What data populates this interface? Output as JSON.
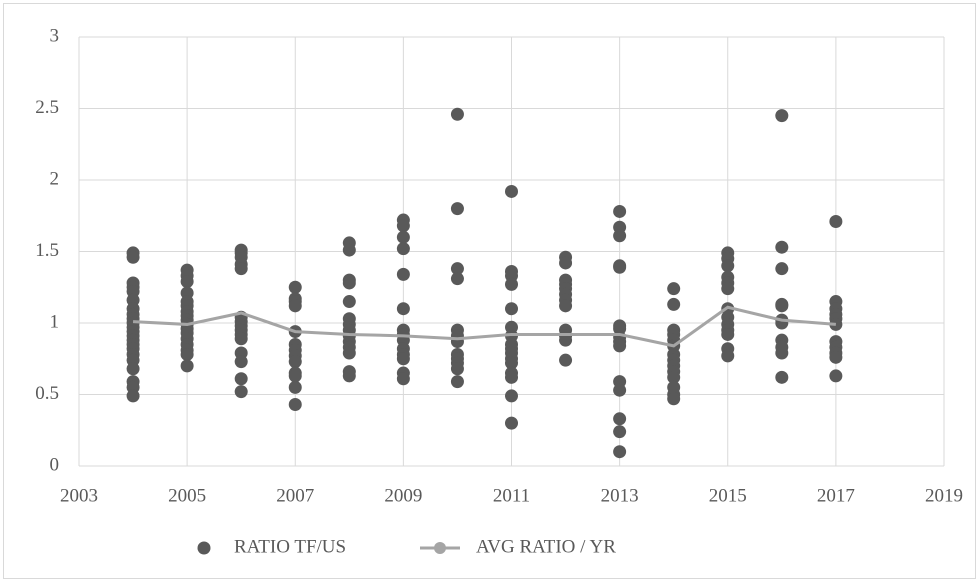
{
  "chart_data": {
    "type": "scatter",
    "xlim": [
      2003,
      2019
    ],
    "xticks": [
      2003,
      2005,
      2007,
      2009,
      2011,
      2013,
      2015,
      2017,
      2019
    ],
    "ylim": [
      0,
      3
    ],
    "yticks": [
      0,
      0.5,
      1,
      1.5,
      2,
      2.5,
      3
    ],
    "grid": true,
    "legend": "bottom",
    "series": [
      {
        "name": "RATIO TF/US",
        "color": "#595959",
        "mode": "markers",
        "x": [
          2004,
          2004,
          2004,
          2004,
          2004,
          2004,
          2004,
          2004,
          2004,
          2004,
          2004,
          2004,
          2004,
          2004,
          2004,
          2004,
          2004,
          2004,
          2004,
          2004,
          2004,
          2004,
          2005,
          2005,
          2005,
          2005,
          2005,
          2005,
          2005,
          2005,
          2005,
          2005,
          2005,
          2005,
          2005,
          2005,
          2005,
          2005,
          2005,
          2006,
          2006,
          2006,
          2006,
          2006,
          2006,
          2006,
          2006,
          2006,
          2006,
          2006,
          2006,
          2006,
          2006,
          2006,
          2007,
          2007,
          2007,
          2007,
          2007,
          2007,
          2007,
          2007,
          2007,
          2007,
          2007,
          2007,
          2007,
          2008,
          2008,
          2008,
          2008,
          2008,
          2008,
          2008,
          2008,
          2008,
          2008,
          2008,
          2008,
          2008,
          2008,
          2009,
          2009,
          2009,
          2009,
          2009,
          2009,
          2009,
          2009,
          2009,
          2009,
          2009,
          2009,
          2009,
          2009,
          2010,
          2010,
          2010,
          2010,
          2010,
          2010,
          2010,
          2010,
          2010,
          2010,
          2010,
          2010,
          2011,
          2011,
          2011,
          2011,
          2011,
          2011,
          2011,
          2011,
          2011,
          2011,
          2011,
          2011,
          2011,
          2011,
          2011,
          2011,
          2012,
          2012,
          2012,
          2012,
          2012,
          2012,
          2012,
          2012,
          2012,
          2012,
          2012,
          2012,
          2013,
          2013,
          2013,
          2013,
          2013,
          2013,
          2013,
          2013,
          2013,
          2013,
          2013,
          2013,
          2013,
          2013,
          2013,
          2014,
          2014,
          2014,
          2014,
          2014,
          2014,
          2014,
          2014,
          2014,
          2014,
          2014,
          2014,
          2014,
          2014,
          2015,
          2015,
          2015,
          2015,
          2015,
          2015,
          2015,
          2015,
          2015,
          2015,
          2015,
          2015,
          2015,
          2016,
          2016,
          2016,
          2016,
          2016,
          2016,
          2016,
          2016,
          2016,
          2016,
          2016,
          2017,
          2017,
          2017,
          2017,
          2017,
          2017,
          2017,
          2017,
          2017,
          2017,
          2017
        ],
        "values": [
          1.49,
          1.46,
          1.28,
          1.25,
          1.22,
          1.16,
          1.1,
          1.06,
          1.03,
          1.0,
          0.97,
          0.94,
          0.91,
          0.88,
          0.85,
          0.82,
          0.78,
          0.74,
          0.68,
          0.59,
          0.55,
          0.49,
          1.37,
          1.33,
          1.29,
          1.21,
          1.15,
          1.12,
          1.08,
          1.05,
          1.02,
          0.99,
          0.96,
          0.93,
          0.89,
          0.85,
          0.81,
          0.78,
          0.7,
          1.51,
          1.49,
          1.46,
          1.41,
          1.38,
          1.04,
          1.01,
          0.98,
          0.95,
          0.92,
          0.89,
          0.79,
          0.73,
          0.61,
          0.52,
          1.25,
          1.17,
          1.15,
          1.12,
          0.94,
          0.85,
          0.81,
          0.77,
          0.73,
          0.65,
          0.63,
          0.55,
          0.43,
          1.56,
          1.51,
          1.3,
          1.28,
          1.15,
          1.03,
          0.99,
          0.95,
          0.91,
          0.87,
          0.83,
          0.79,
          0.66,
          0.63,
          1.72,
          1.68,
          1.6,
          1.52,
          1.34,
          1.1,
          0.95,
          0.92,
          0.88,
          0.82,
          0.78,
          0.75,
          0.65,
          0.61,
          2.46,
          1.8,
          1.38,
          1.31,
          0.95,
          0.91,
          0.87,
          0.78,
          0.75,
          0.72,
          0.68,
          0.59,
          1.92,
          1.36,
          1.33,
          1.27,
          1.1,
          0.97,
          0.91,
          0.85,
          0.82,
          0.79,
          0.75,
          0.72,
          0.65,
          0.62,
          0.49,
          0.3,
          1.46,
          1.42,
          1.3,
          1.27,
          1.24,
          1.2,
          1.16,
          1.12,
          0.95,
          0.91,
          0.88,
          0.74,
          1.78,
          1.67,
          1.61,
          1.4,
          1.39,
          0.98,
          0.96,
          0.9,
          0.87,
          0.84,
          0.59,
          0.53,
          0.33,
          0.24,
          0.1,
          1.24,
          1.13,
          0.95,
          0.92,
          0.88,
          0.84,
          0.78,
          0.74,
          0.7,
          0.66,
          0.62,
          0.55,
          0.5,
          0.47,
          1.49,
          1.45,
          1.4,
          1.32,
          1.28,
          1.24,
          1.1,
          1.04,
          0.99,
          0.95,
          0.92,
          0.82,
          0.77,
          2.45,
          1.53,
          1.38,
          1.13,
          1.12,
          1.02,
          1.0,
          0.88,
          0.83,
          0.79,
          0.62,
          1.71,
          1.15,
          1.1,
          1.06,
          1.03,
          0.99,
          0.87,
          0.83,
          0.79,
          0.76,
          0.63
        ]
      },
      {
        "name": "AVG RATIO / YR",
        "color": "#a5a5a5",
        "mode": "lines",
        "x": [
          2004,
          2005,
          2006,
          2007,
          2008,
          2009,
          2010,
          2011,
          2012,
          2013,
          2014,
          2015,
          2016,
          2017
        ],
        "values": [
          1.01,
          0.99,
          1.07,
          0.94,
          0.92,
          0.91,
          0.89,
          0.92,
          0.92,
          0.92,
          0.84,
          1.11,
          1.02,
          0.99
        ]
      }
    ]
  }
}
